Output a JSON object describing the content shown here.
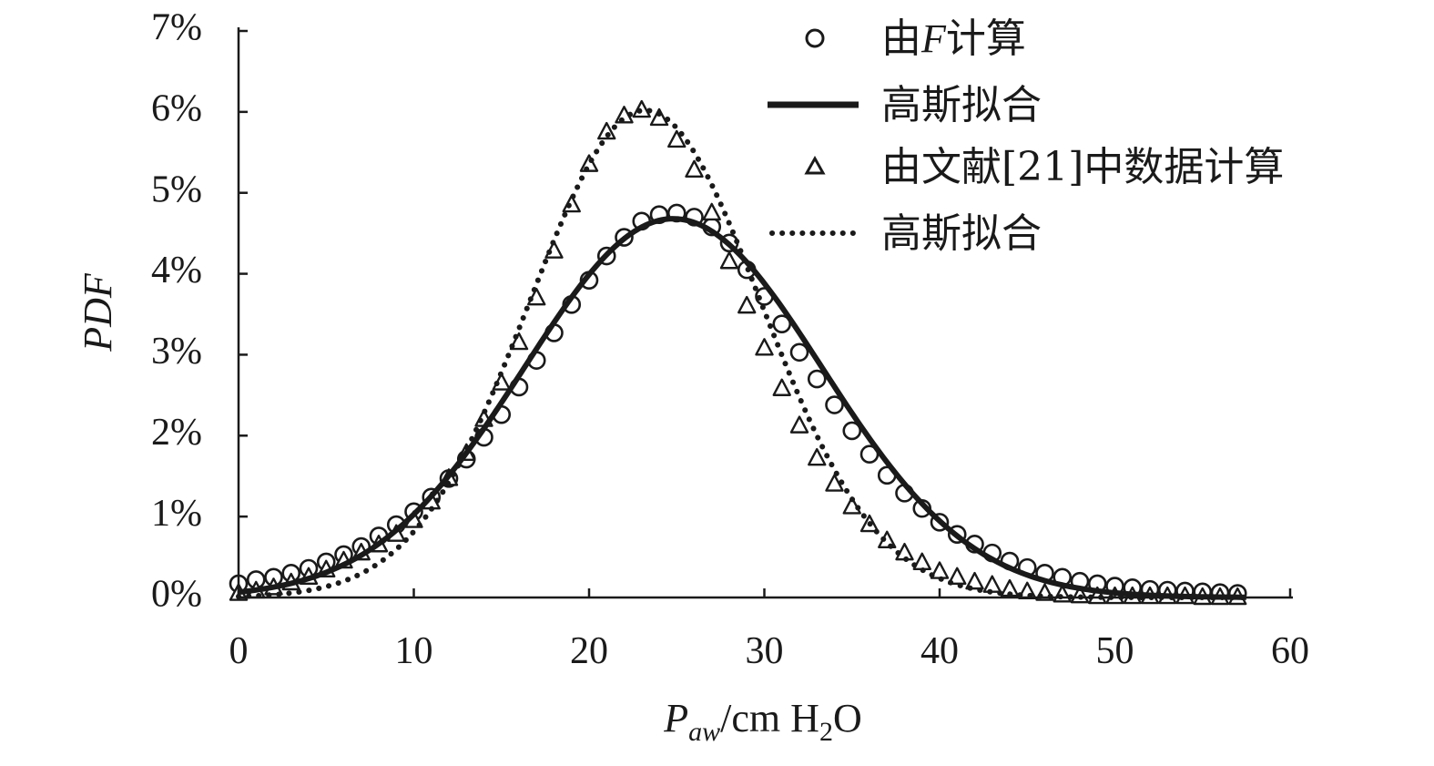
{
  "chart_data": {
    "type": "scatter",
    "x_axis": {
      "label_main": "P",
      "label_sub": "aw",
      "label_rest": "/cm H",
      "label_sub2": "2",
      "label_end": "O",
      "range": [
        0,
        60
      ],
      "ticks": [
        0,
        10,
        20,
        30,
        40,
        50,
        60
      ],
      "tick_labels": [
        "0",
        "10",
        "20",
        "30",
        "40",
        "50",
        "60"
      ]
    },
    "y_axis": {
      "label": "PDF",
      "range": [
        0,
        7
      ],
      "ticks": [
        0,
        1,
        2,
        3,
        4,
        5,
        6,
        7
      ],
      "tick_labels": [
        "0%",
        "1%",
        "2%",
        "3%",
        "4%",
        "5%",
        "6%",
        "7%"
      ],
      "unit": "percent"
    },
    "grid": false,
    "legend_position": "top-right",
    "legend": {
      "item1_pre": "由",
      "item1_italic": "F",
      "item1_post": "计算",
      "item2": "高斯拟合",
      "item3": "由文献[21]中数据计算",
      "item4": "高斯拟合"
    },
    "series": [
      {
        "name": "由F计算",
        "kind": "markers",
        "marker": "circle",
        "x": [
          0,
          1,
          2,
          3,
          4,
          5,
          6,
          7,
          8,
          9,
          10,
          11,
          12,
          13,
          14,
          15,
          16,
          17,
          18,
          19,
          20,
          21,
          22,
          23,
          24,
          25,
          26,
          27,
          28,
          29,
          30,
          31,
          32,
          33,
          34,
          35,
          36,
          37,
          38,
          39,
          40,
          41,
          42,
          43,
          44,
          45,
          46,
          47,
          48,
          49,
          50,
          51,
          52,
          53,
          54,
          55,
          56,
          57
        ],
        "y": [
          0.17,
          0.22,
          0.25,
          0.3,
          0.36,
          0.44,
          0.53,
          0.63,
          0.76,
          0.9,
          1.06,
          1.24,
          1.47,
          1.71,
          1.98,
          2.26,
          2.6,
          2.93,
          3.27,
          3.62,
          3.92,
          4.22,
          4.45,
          4.65,
          4.73,
          4.75,
          4.7,
          4.58,
          4.38,
          4.05,
          3.72,
          3.38,
          3.03,
          2.7,
          2.38,
          2.06,
          1.77,
          1.51,
          1.29,
          1.1,
          0.93,
          0.78,
          0.66,
          0.55,
          0.45,
          0.37,
          0.3,
          0.25,
          0.2,
          0.17,
          0.14,
          0.12,
          0.1,
          0.09,
          0.08,
          0.07,
          0.06,
          0.05
        ]
      },
      {
        "name": "高斯拟合",
        "kind": "line",
        "style": "solid",
        "mean": 24.8,
        "sigma": 8.5,
        "peak": 4.68,
        "x_range": [
          0,
          57.5
        ]
      },
      {
        "name": "由文献[21]中数据计算",
        "kind": "markers",
        "marker": "triangle",
        "x": [
          0,
          1,
          2,
          3,
          4,
          5,
          6,
          7,
          8,
          9,
          10,
          11,
          12,
          13,
          14,
          15,
          16,
          17,
          18,
          19,
          20,
          21,
          22,
          23,
          24,
          25,
          26,
          27,
          28,
          29,
          30,
          31,
          32,
          33,
          34,
          35,
          36,
          37,
          38,
          39,
          40,
          41,
          42,
          43,
          44,
          45,
          46,
          47,
          48,
          49,
          50,
          51,
          52,
          53,
          54,
          55,
          56,
          57
        ],
        "y": [
          0.05,
          0.08,
          0.12,
          0.18,
          0.25,
          0.34,
          0.45,
          0.55,
          0.65,
          0.78,
          0.95,
          1.18,
          1.47,
          1.78,
          2.2,
          2.65,
          3.15,
          3.7,
          4.28,
          4.85,
          5.35,
          5.75,
          5.95,
          6.02,
          5.92,
          5.65,
          5.28,
          4.75,
          4.15,
          3.6,
          3.08,
          2.58,
          2.12,
          1.72,
          1.4,
          1.12,
          0.9,
          0.7,
          0.55,
          0.43,
          0.32,
          0.25,
          0.19,
          0.15,
          0.1,
          0.07,
          0.05,
          0.03,
          0.02,
          0.01,
          0.01,
          0.01,
          0.01,
          0.01,
          0.01,
          0.0,
          0.0,
          0.0
        ]
      },
      {
        "name": "高斯拟合",
        "kind": "line",
        "style": "dotted",
        "mean": 23.2,
        "sigma": 6.6,
        "peak": 6.02,
        "x_range": [
          0,
          57.5
        ]
      }
    ]
  }
}
